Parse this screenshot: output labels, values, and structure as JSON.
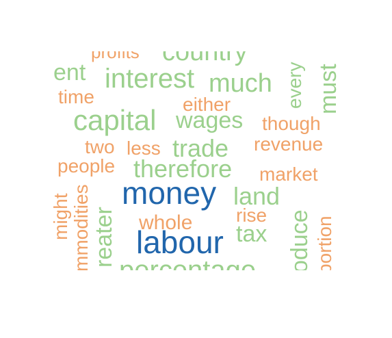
{
  "colors": {
    "dark": "#2166ac",
    "green": "#9bd08d",
    "orange": "#f0a268"
  },
  "words": {
    "profits": "profits",
    "country": "country",
    "ent": "ent",
    "interest": "interest",
    "much": "much",
    "every": "every",
    "must": "must",
    "time": "time",
    "either": "either",
    "capital": "capital",
    "wages": "wages",
    "though": "though",
    "two": "two",
    "less": "less",
    "trade": "trade",
    "revenue": "revenue",
    "people": "people",
    "therefore": "therefore",
    "market": "market",
    "money": "money",
    "land": "land",
    "might": "might",
    "commodities": "mmodities",
    "greater": "reater",
    "produce": "oduce",
    "whole": "whole",
    "rise": "rise",
    "proportion": "portion",
    "tax": "tax",
    "labour": "labour",
    "percentage": "percentage"
  }
}
